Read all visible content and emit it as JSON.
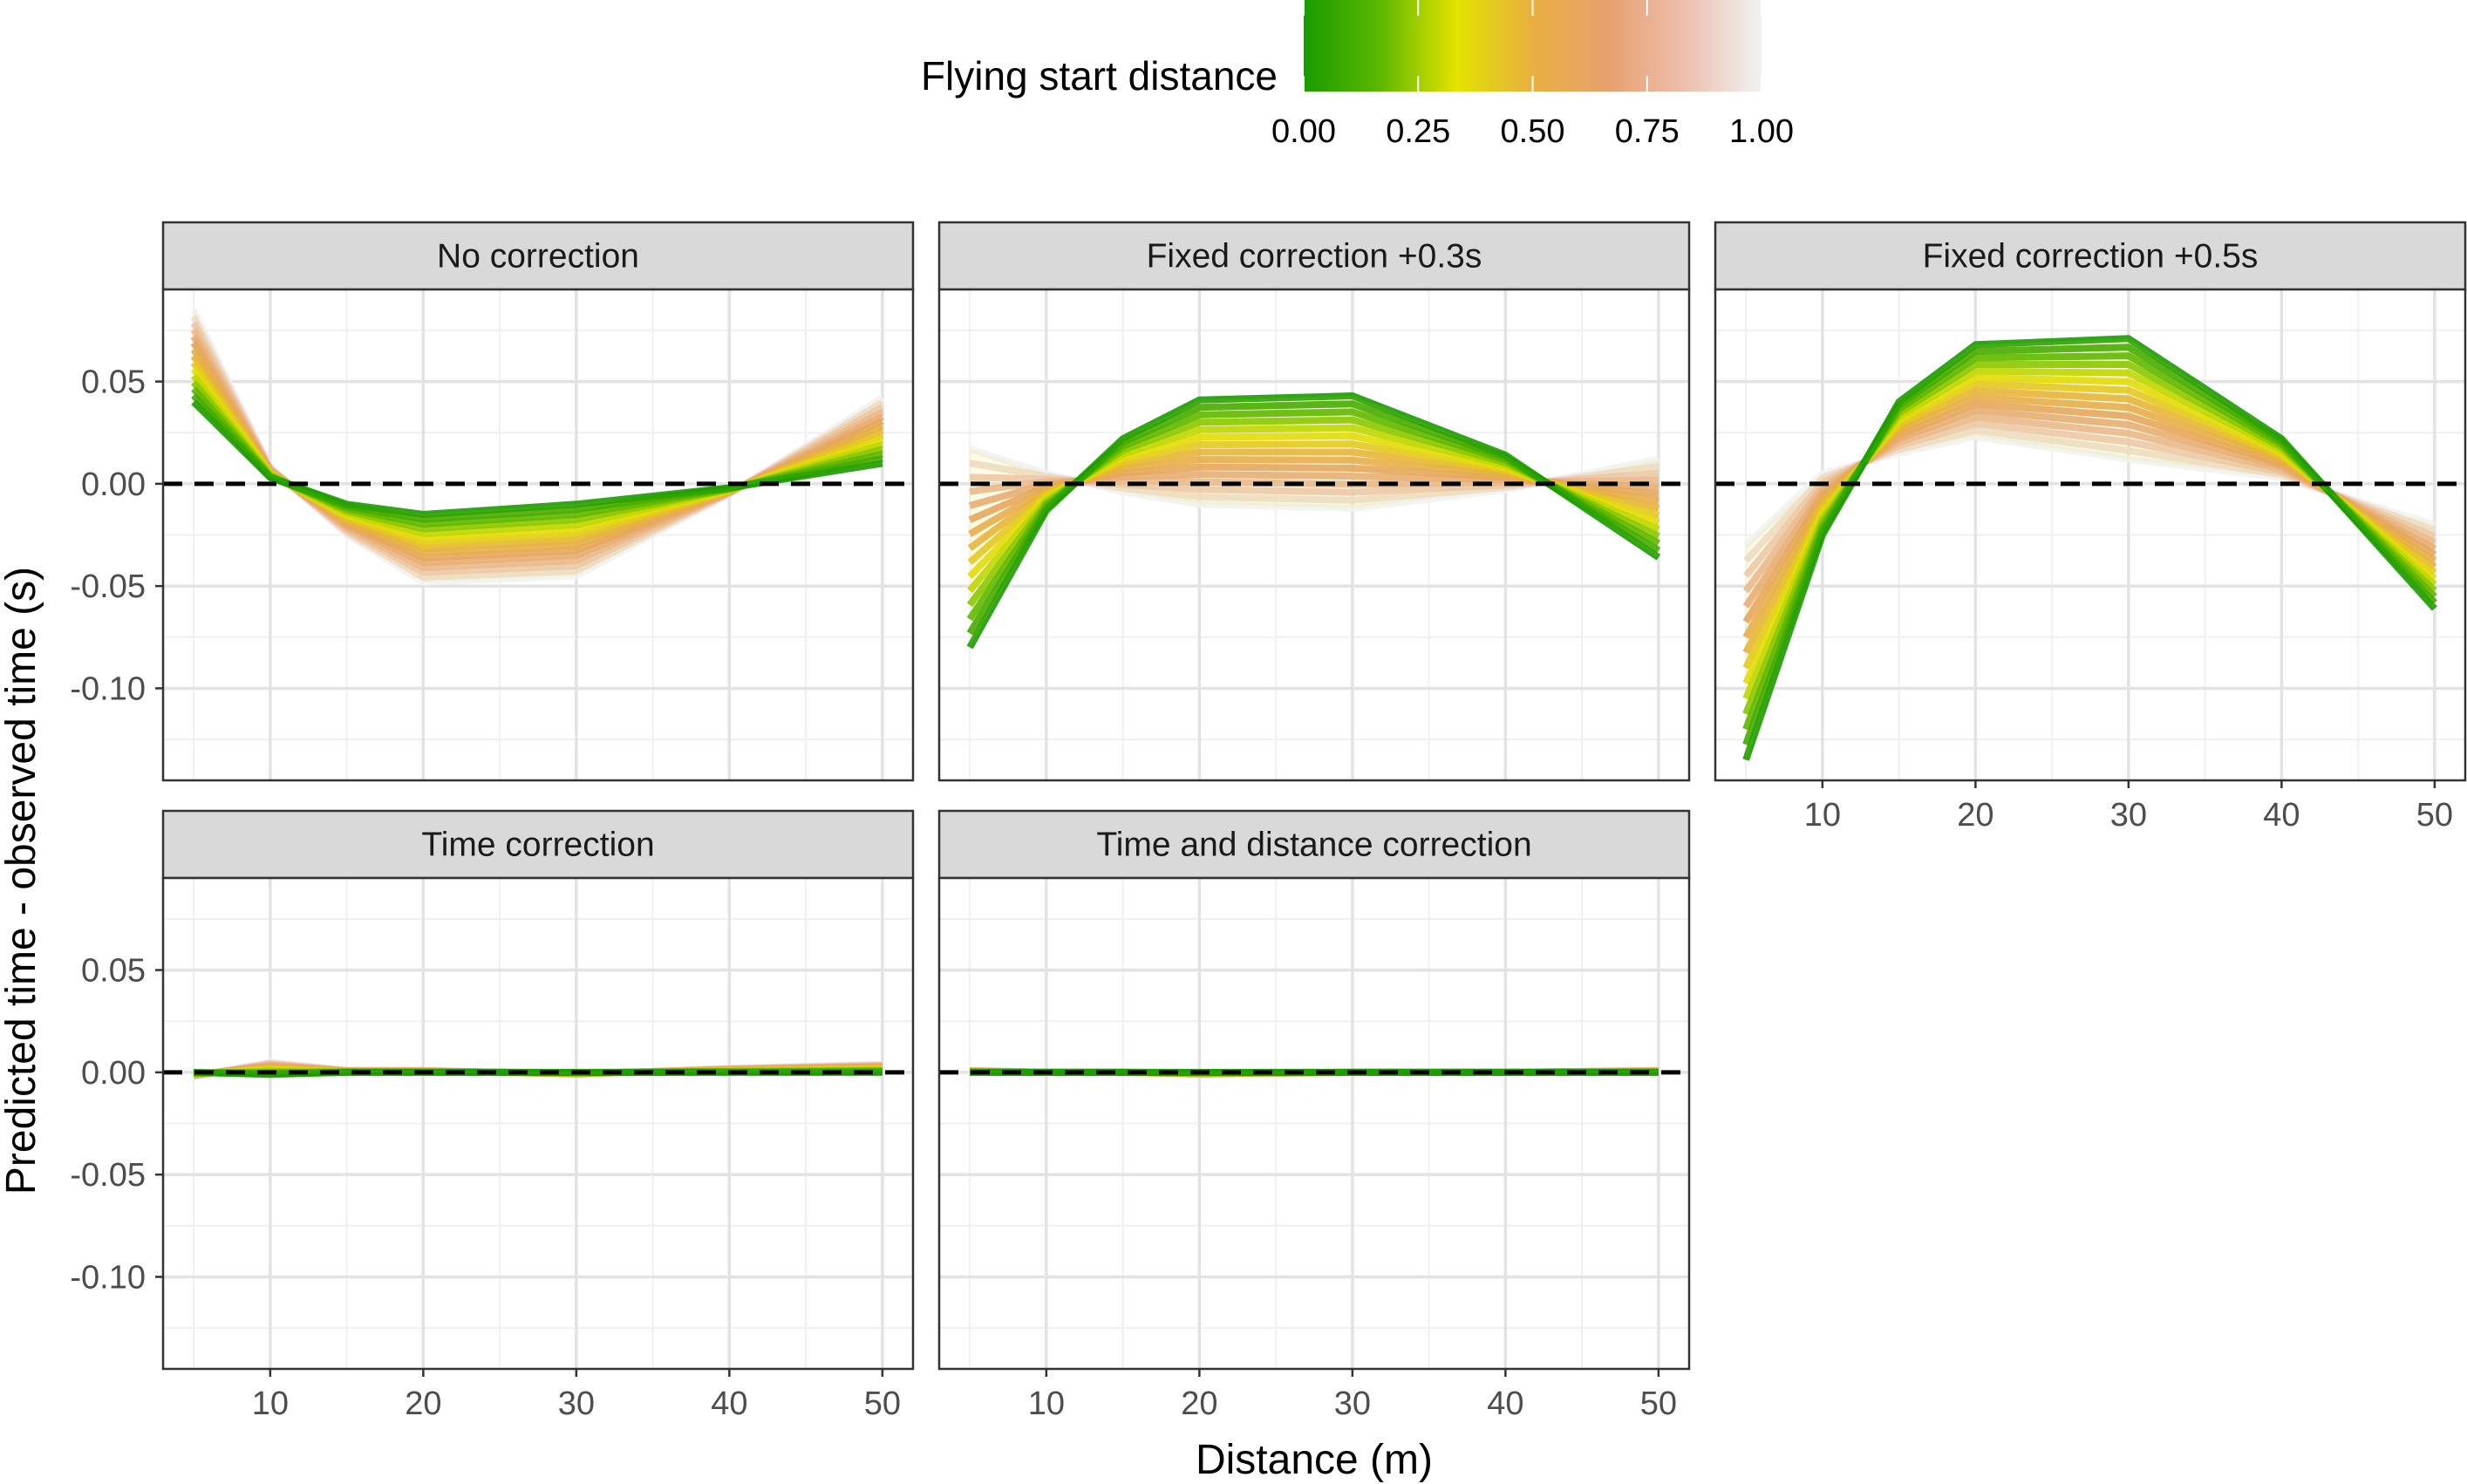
{
  "chart_data": {
    "type": "line",
    "layout": "facet-grid-2x3",
    "xlabel": "Distance (m)",
    "ylabel": "Predicted time - observed time (s)",
    "xlim": [
      3,
      52
    ],
    "ylim": [
      -0.145,
      0.095
    ],
    "x_ticks": [
      10,
      20,
      30,
      40,
      50
    ],
    "x_tick_labels": [
      "10",
      "20",
      "30",
      "40",
      "50"
    ],
    "y_ticks": [
      -0.1,
      -0.05,
      0.0,
      0.05
    ],
    "y_tick_labels": [
      "-0.10",
      "-0.05",
      "0.00",
      "0.05"
    ],
    "grid": true,
    "reference_line": {
      "y": 0,
      "style": "dashed",
      "color": "#000000"
    },
    "legend": {
      "title": "Flying start distance",
      "placement": "top",
      "type": "colorbar",
      "range": [
        0,
        1
      ],
      "ticks": [
        0,
        0.25,
        0.5,
        0.75,
        1
      ],
      "tick_labels": [
        "0.00",
        "0.25",
        "0.50",
        "0.75",
        "1.00"
      ],
      "colors": [
        "#1a9b00",
        "#5cb800",
        "#e3e300",
        "#e8b040",
        "#e8a070",
        "#edbfae",
        "#f2f2f2"
      ]
    },
    "x": [
      5,
      10,
      15,
      20,
      30,
      40,
      50
    ],
    "panels": [
      {
        "title": "No correction",
        "row": 0,
        "col": 0,
        "fsd0": [
          0.04,
          0.003,
          -0.01,
          -0.015,
          -0.01,
          -0.002,
          0.01
        ],
        "fsd1": [
          0.085,
          0.008,
          -0.025,
          -0.048,
          -0.045,
          -0.005,
          0.042
        ]
      },
      {
        "title": "Fixed correction +0.3s",
        "row": 0,
        "col": 1,
        "fsd0": [
          -0.08,
          -0.013,
          0.022,
          0.041,
          0.043,
          0.014,
          -0.036
        ],
        "fsd1": [
          0.017,
          0.005,
          -0.004,
          -0.01,
          -0.012,
          -0.003,
          0.012
        ]
      },
      {
        "title": "Fixed correction +0.5s",
        "row": 0,
        "col": 2,
        "fsd0": [
          -0.135,
          -0.025,
          0.04,
          0.068,
          0.071,
          0.022,
          -0.061
        ],
        "fsd1": [
          -0.03,
          0.005,
          0.015,
          0.023,
          0.012,
          0.003,
          -0.02
        ]
      },
      {
        "title": "Time correction",
        "row": 1,
        "col": 0,
        "fsd0": [
          0.0,
          -0.001,
          0.0,
          0.0,
          0.0,
          0.0,
          0.0
        ],
        "fsd1": [
          -0.002,
          0.005,
          0.001,
          0.001,
          -0.001,
          0.002,
          0.004
        ]
      },
      {
        "title": "Time and distance correction",
        "row": 1,
        "col": 1,
        "fsd0": [
          0.0,
          0.0,
          0.0,
          0.0,
          0.0,
          0.0,
          0.0
        ],
        "fsd1": [
          0.001,
          0.0,
          0.0,
          -0.001,
          0.0,
          0.0,
          0.001
        ]
      }
    ]
  }
}
